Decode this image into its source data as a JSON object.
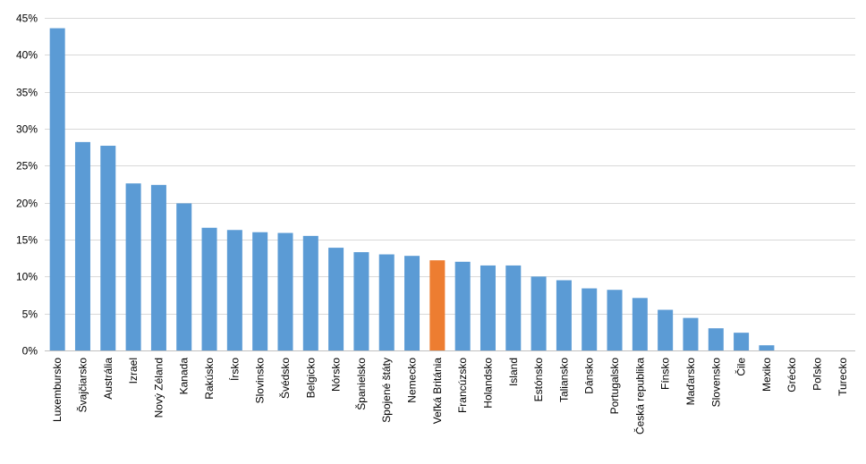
{
  "chart_data": {
    "type": "bar",
    "title": "",
    "xlabel": "",
    "ylabel": "",
    "ylim": [
      0,
      45
    ],
    "y_ticks": [
      "0%",
      "5%",
      "10%",
      "15%",
      "20%",
      "25%",
      "30%",
      "35%",
      "40%",
      "45%"
    ],
    "grid": true,
    "legend": "none",
    "categories": [
      "Luxembursko",
      "Švajčiarsko",
      "Austrália",
      "Izrael",
      "Nový Zéland",
      "Kanada",
      "Rakúsko",
      "Írsko",
      "Slovinsko",
      "Švédsko",
      "Belgicko",
      "Nórsko",
      "Španielsko",
      "Spojené štáty",
      "Nemecko",
      "Veľká Británia",
      "Francúzsko",
      "Holandsko",
      "Island",
      "Estónsko",
      "Taliansko",
      "Dánsko",
      "Portugalsko",
      "Česká republika",
      "Fínsko",
      "Maďarsko",
      "Slovensko",
      "Čile",
      "Mexiko",
      "Grécko",
      "Poľsko",
      "Turecko"
    ],
    "values": [
      43.6,
      28.2,
      27.7,
      22.6,
      22.4,
      19.9,
      16.6,
      16.3,
      16.0,
      15.9,
      15.5,
      13.9,
      13.3,
      13.0,
      12.8,
      12.2,
      12.0,
      11.5,
      11.5,
      10.0,
      9.5,
      8.4,
      8.2,
      7.1,
      5.5,
      4.4,
      3.0,
      2.4,
      0.7,
      0.0,
      0.0,
      0.0
    ],
    "bar_color": "#5b9bd5",
    "highlight_category": "Veľká Británia",
    "highlight_color": "#ed7d31"
  }
}
